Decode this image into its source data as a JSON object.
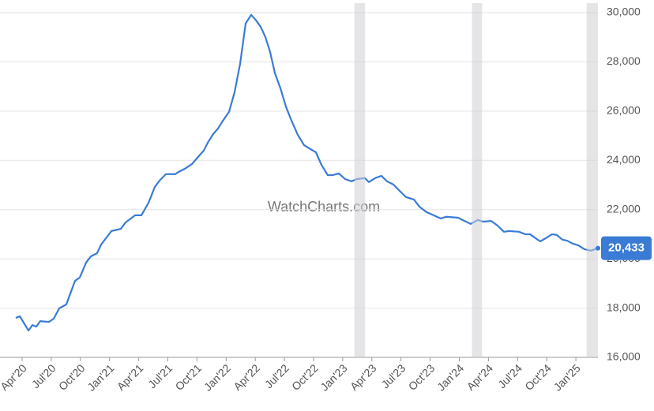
{
  "chart_data": {
    "type": "line",
    "watermark": "WatchCharts.com",
    "x": [
      -0.65,
      -0.24,
      0.65,
      1.06,
      1.46,
      1.87,
      2.76,
      3.25,
      3.82,
      4.55,
      5.45,
      5.93,
      6.59,
      7.07,
      7.72,
      8.13,
      9.19,
      10.16,
      10.65,
      11.63,
      12.28,
      13.01,
      13.66,
      14.15,
      14.8,
      15.77,
      16.1,
      16.75,
      17.48,
      18.05,
      18.7,
      19.11,
      19.67,
      20.16,
      20.57,
      21.3,
      21.87,
      22.44,
      23.01,
      23.58,
      24.07,
      24.55,
      25.04,
      25.53,
      26.02,
      26.59,
      27.15,
      27.72,
      28.37,
      29.02,
      29.67,
      30.24,
      30.81,
      31.46,
      31.95,
      32.6,
      33.25,
      33.9,
      34.47,
      35.28,
      35.69,
      36.34,
      36.99,
      37.56,
      38.21,
      38.86,
      39.51,
      40.33,
      40.89,
      41.63,
      42.36,
      43.09,
      43.66,
      44.88,
      45.69,
      46.18,
      46.91,
      47.48,
      48.29,
      48.94,
      49.59,
      50.16,
      51.14,
      51.79,
      52.28,
      52.85,
      53.33,
      53.9,
      54.55,
      55.04,
      55.61,
      56.1,
      56.67,
      57.24,
      57.89,
      58.54,
      59.27
    ],
    "series": [
      {
        "color": "#3a7bd5",
        "values": [
          17600,
          17670,
          17090,
          17310,
          17250,
          17470,
          17440,
          17570,
          17990,
          18150,
          19110,
          19240,
          19850,
          20100,
          20230,
          20580,
          21130,
          21220,
          21480,
          21770,
          21770,
          22280,
          22920,
          23180,
          23440,
          23440,
          23530,
          23660,
          23850,
          24110,
          24400,
          24720,
          25070,
          25290,
          25550,
          25970,
          26770,
          27920,
          29560,
          29910,
          29690,
          29430,
          29010,
          28400,
          27540,
          26930,
          26190,
          25620,
          25040,
          24620,
          24460,
          24330,
          23820,
          23400,
          23400,
          23470,
          23240,
          23150,
          23240,
          23280,
          23120,
          23280,
          23370,
          23150,
          23020,
          22760,
          22510,
          22410,
          22120,
          21900,
          21770,
          21640,
          21710,
          21670,
          21510,
          21420,
          21580,
          21510,
          21540,
          21350,
          21100,
          21130,
          21100,
          21000,
          21000,
          20840,
          20710,
          20840,
          21000,
          20970,
          20780,
          20740,
          20620,
          20550,
          20390,
          20330,
          20433
        ],
        "value_labels": [
          null,
          null,
          null,
          null,
          null,
          null,
          null,
          null,
          null,
          null,
          null,
          null,
          null,
          null,
          null,
          null,
          null,
          null,
          null,
          null,
          null,
          null,
          null,
          null,
          null,
          null,
          null,
          null,
          null,
          null,
          null,
          null,
          null,
          null,
          null,
          null,
          null,
          null,
          null,
          null,
          null,
          null,
          null,
          null,
          null,
          null,
          null,
          null,
          null,
          null,
          null,
          null,
          null,
          null,
          null,
          null,
          null,
          null,
          null,
          null,
          null,
          null,
          null,
          null,
          null,
          null,
          null,
          null,
          null,
          null,
          null,
          null,
          null,
          null,
          null,
          null,
          null,
          null,
          null,
          null,
          null,
          null,
          null,
          null,
          null,
          null,
          null,
          null,
          null,
          null,
          null,
          null,
          null,
          null,
          null,
          null,
          "20,433"
        ]
      }
    ],
    "shaded_ranges": [
      [
        34.2,
        35.3
      ],
      [
        46.3,
        47.35
      ],
      [
        58.1,
        59.27
      ]
    ],
    "xlim": [
      -0.65,
      59.27
    ],
    "xticks": [
      {
        "value": 0,
        "label": "Apr'20"
      },
      {
        "value": 3,
        "label": "Jul'20"
      },
      {
        "value": 6,
        "label": "Oct'20"
      },
      {
        "value": 9,
        "label": "Jan'21"
      },
      {
        "value": 12,
        "label": "Apr'21"
      },
      {
        "value": 15,
        "label": "Jul'21"
      },
      {
        "value": 18,
        "label": "Oct'21"
      },
      {
        "value": 21,
        "label": "Jan'22"
      },
      {
        "value": 24,
        "label": "Apr'22"
      },
      {
        "value": 27,
        "label": "Jul'22"
      },
      {
        "value": 30,
        "label": "Oct'22"
      },
      {
        "value": 33,
        "label": "Jan'23"
      },
      {
        "value": 36,
        "label": "Apr'23"
      },
      {
        "value": 39,
        "label": "Jul'23"
      },
      {
        "value": 42,
        "label": "Oct'23"
      },
      {
        "value": 45,
        "label": "Jan'24"
      },
      {
        "value": 48,
        "label": "Apr'24"
      },
      {
        "value": 51,
        "label": "Jul'24"
      },
      {
        "value": 54,
        "label": "Oct'24"
      },
      {
        "value": 57,
        "label": "Jan'25"
      }
    ],
    "ylim": [
      16000,
      30385
    ],
    "yticks": [
      {
        "value": 16000,
        "label": "16,000"
      },
      {
        "value": 18000,
        "label": "18,000"
      },
      {
        "value": 20000,
        "label": "20,000"
      },
      {
        "value": 22000,
        "label": "22,000"
      },
      {
        "value": 24000,
        "label": "24,000"
      },
      {
        "value": 26000,
        "label": "26,000"
      },
      {
        "value": 28000,
        "label": "28,000"
      },
      {
        "value": 30000,
        "label": "30,000"
      }
    ],
    "grid": true
  }
}
